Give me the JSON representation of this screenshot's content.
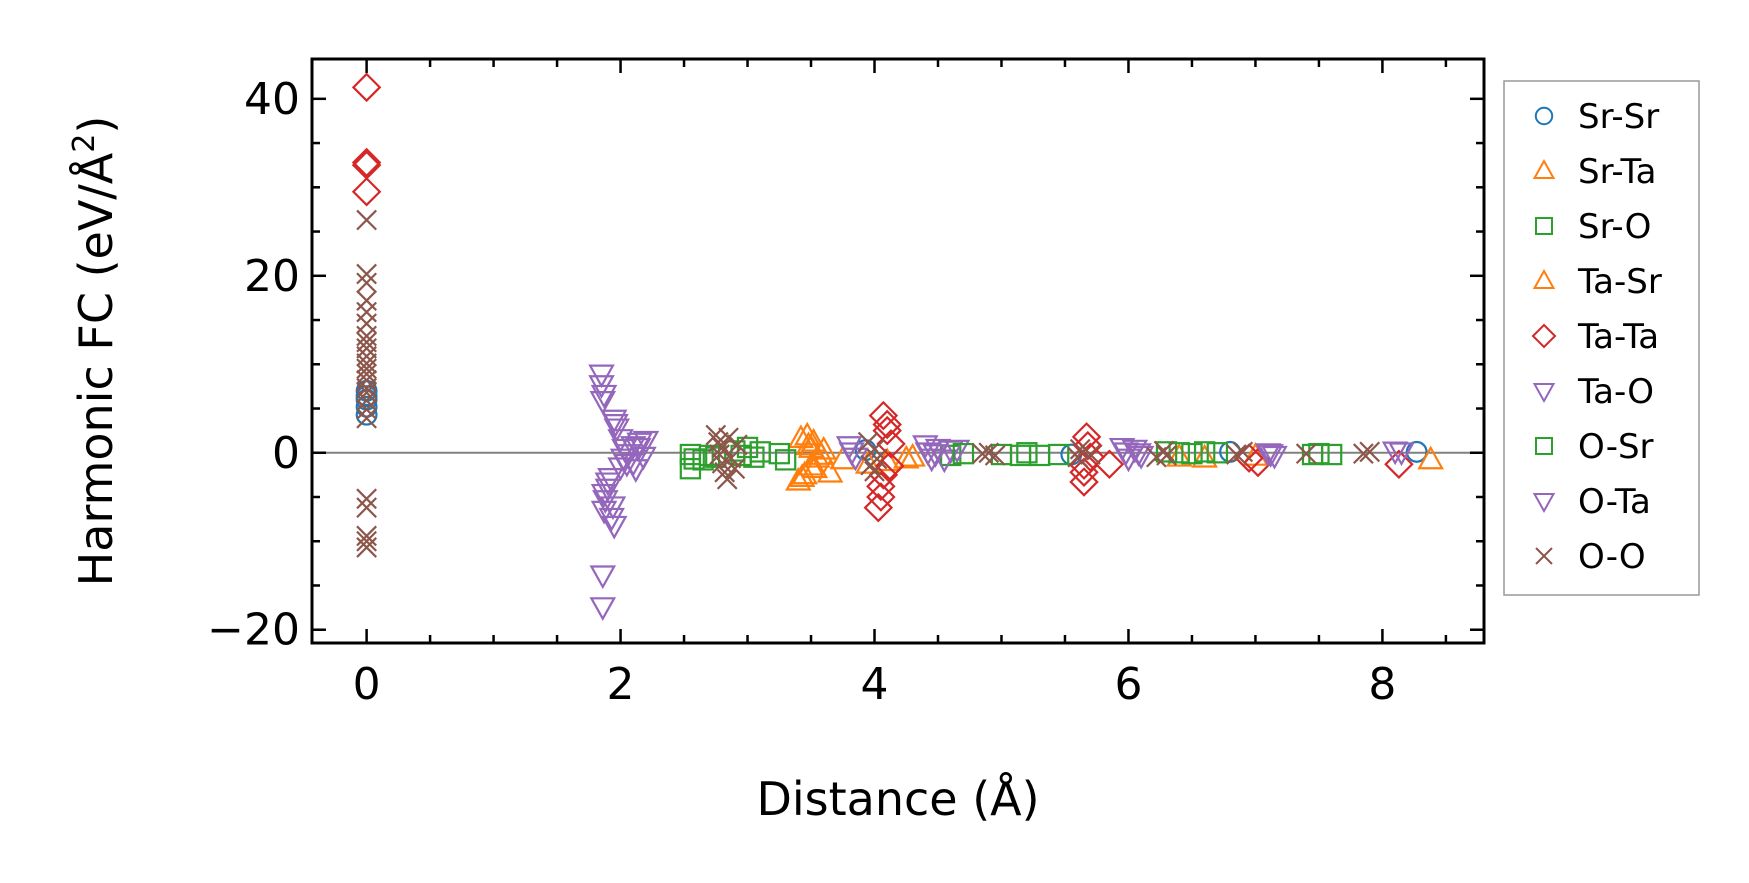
{
  "chart_data": {
    "type": "scatter",
    "title": "",
    "xlabel": "Distance (Å)",
    "ylabel_main": "Harmonic FC (eV/Å",
    "ylabel_sup": "2",
    "ylabel_close": ")",
    "xlim": [
      -0.43,
      8.8
    ],
    "ylim": [
      -21.5,
      44.5
    ],
    "xticks": [
      0,
      2,
      4,
      6,
      8
    ],
    "xtick_labels": [
      "0",
      "2",
      "4",
      "6",
      "8"
    ],
    "yticks": [
      -20,
      0,
      20,
      40
    ],
    "ytick_labels": [
      "−20",
      "0",
      "20",
      "40"
    ],
    "x_minor_step": 0.5,
    "y_minor_step": 5,
    "grid": false,
    "zero_line": true,
    "legend_position": "outside-right",
    "series": [
      {
        "name": "Sr-Sr",
        "marker": "circle",
        "color": "#1f77b4",
        "points": [
          [
            0,
            4.3
          ],
          [
            0,
            5.2
          ],
          [
            0,
            6.0
          ],
          [
            0,
            6.4
          ],
          [
            0,
            7.0
          ],
          [
            3.93,
            0.3
          ],
          [
            5.55,
            -0.2
          ],
          [
            6.8,
            0.1
          ],
          [
            8.27,
            0.1
          ]
        ]
      },
      {
        "name": "Sr-Ta",
        "marker": "triangle-up",
        "color": "#ff7f0e",
        "points": [
          [
            3.4,
            -3.2
          ],
          [
            3.42,
            1.6
          ],
          [
            3.45,
            -2.5
          ],
          [
            3.48,
            0.8
          ],
          [
            3.5,
            -1.5
          ],
          [
            3.52,
            1.2
          ],
          [
            3.55,
            -0.6
          ],
          [
            3.6,
            0.3
          ],
          [
            3.65,
            -2.3
          ],
          [
            3.75,
            -0.8
          ],
          [
            4.1,
            -1.0
          ],
          [
            4.3,
            -0.5
          ],
          [
            6.4,
            -0.5
          ],
          [
            6.6,
            -0.6
          ],
          [
            7.0,
            -0.4
          ],
          [
            8.38,
            -0.8
          ]
        ]
      },
      {
        "name": "Sr-O",
        "marker": "square",
        "color": "#2ca02c",
        "points": [
          [
            2.55,
            -1.8
          ],
          [
            2.55,
            -0.2
          ],
          [
            2.65,
            -0.8
          ],
          [
            2.75,
            -0.5
          ],
          [
            2.9,
            0.2
          ],
          [
            3.0,
            0.6
          ],
          [
            3.05,
            -0.5
          ],
          [
            3.3,
            -0.8
          ],
          [
            4.6,
            -0.3
          ],
          [
            5.0,
            -0.2
          ],
          [
            5.15,
            -0.3
          ],
          [
            5.3,
            -0.3
          ],
          [
            5.45,
            -0.2
          ],
          [
            6.3,
            0.1
          ],
          [
            6.5,
            -0.1
          ],
          [
            6.7,
            0.0
          ],
          [
            7.45,
            -0.2
          ],
          [
            7.6,
            -0.2
          ]
        ]
      },
      {
        "name": "Ta-Sr",
        "marker": "triangle-up",
        "color": "#ff7f0e",
        "points": [
          [
            3.43,
            -2.8
          ],
          [
            3.47,
            1.9
          ],
          [
            3.5,
            0.5
          ],
          [
            3.53,
            -1.8
          ],
          [
            3.58,
            -0.3
          ],
          [
            3.95,
            -1.3
          ],
          [
            4.25,
            -0.7
          ]
        ]
      },
      {
        "name": "Ta-Ta",
        "marker": "diamond",
        "color": "#d62728",
        "points": [
          [
            0,
            41.3
          ],
          [
            0,
            32.5
          ],
          [
            0,
            32.8
          ],
          [
            0,
            29.5
          ],
          [
            4.03,
            -6.2
          ],
          [
            4.05,
            -5.0
          ],
          [
            4.05,
            -3.8
          ],
          [
            4.07,
            -2.5
          ],
          [
            4.07,
            4.2
          ],
          [
            4.1,
            3.2
          ],
          [
            4.1,
            2.5
          ],
          [
            4.12,
            -1.5
          ],
          [
            4.13,
            1.0
          ],
          [
            5.65,
            -3.3
          ],
          [
            5.65,
            -2.2
          ],
          [
            5.65,
            -1.4
          ],
          [
            5.67,
            1.8
          ],
          [
            5.68,
            0.8
          ],
          [
            5.7,
            -0.5
          ],
          [
            5.85,
            -1.3
          ],
          [
            6.95,
            -0.6
          ],
          [
            7.02,
            -1.1
          ],
          [
            8.13,
            -1.3
          ]
        ]
      },
      {
        "name": "Ta-O",
        "marker": "triangle-down",
        "color": "#9467bd",
        "points": [
          [
            1.85,
            8.9
          ],
          [
            1.85,
            7.7
          ],
          [
            1.87,
            6.6
          ],
          [
            1.86,
            -13.8
          ],
          [
            1.86,
            -17.4
          ],
          [
            1.87,
            -6.5
          ],
          [
            1.88,
            -5.3
          ],
          [
            1.9,
            -4.0
          ],
          [
            1.92,
            -2.8
          ],
          [
            1.93,
            -7.3
          ],
          [
            1.95,
            -8.2
          ],
          [
            1.95,
            3.8
          ],
          [
            1.97,
            2.8
          ],
          [
            2.0,
            -1.6
          ],
          [
            2.02,
            -0.6
          ],
          [
            2.03,
            0.5
          ],
          [
            2.05,
            -1.2
          ],
          [
            2.1,
            0.8
          ],
          [
            2.12,
            -1.8
          ],
          [
            2.15,
            1.2
          ],
          [
            2.18,
            -0.4
          ],
          [
            2.2,
            1.4
          ],
          [
            3.8,
            0.8
          ],
          [
            3.85,
            -0.5
          ],
          [
            4.4,
            0.9
          ],
          [
            4.45,
            -0.6
          ],
          [
            4.5,
            0.5
          ],
          [
            4.55,
            -0.7
          ],
          [
            4.6,
            0.3
          ],
          [
            4.65,
            0.4
          ],
          [
            5.95,
            0.6
          ],
          [
            6.0,
            -0.6
          ],
          [
            6.05,
            0.4
          ],
          [
            6.1,
            -0.3
          ],
          [
            7.1,
            0.0
          ],
          [
            7.15,
            -0.3
          ],
          [
            8.1,
            0.2
          ],
          [
            8.15,
            0.1
          ]
        ]
      },
      {
        "name": "O-Sr",
        "marker": "square",
        "color": "#2ca02c",
        "points": [
          [
            2.58,
            -0.7
          ],
          [
            2.7,
            -0.3
          ],
          [
            2.95,
            -0.3
          ],
          [
            3.1,
            0.1
          ],
          [
            3.25,
            -0.1
          ],
          [
            4.7,
            -0.1
          ],
          [
            5.2,
            0.0
          ],
          [
            6.4,
            0.0
          ],
          [
            6.6,
            0.1
          ],
          [
            7.5,
            -0.1
          ]
        ]
      },
      {
        "name": "O-Ta",
        "marker": "triangle-down",
        "color": "#9467bd",
        "points": [
          [
            1.86,
            5.9
          ],
          [
            1.87,
            -4.6
          ],
          [
            1.9,
            -3.3
          ],
          [
            1.94,
            -6.0
          ],
          [
            1.96,
            3.3
          ],
          [
            2.0,
            1.6
          ],
          [
            2.06,
            -0.1
          ],
          [
            2.1,
            -1.1
          ],
          [
            2.14,
            0.6
          ],
          [
            3.82,
            0.1
          ],
          [
            4.42,
            0.1
          ],
          [
            4.48,
            -0.1
          ],
          [
            5.98,
            0.1
          ],
          [
            6.08,
            0.0
          ],
          [
            7.12,
            -0.1
          ]
        ]
      },
      {
        "name": "O-O",
        "marker": "x",
        "color": "#8c564b",
        "points": [
          [
            0,
            26.3
          ],
          [
            0,
            20.2
          ],
          [
            0,
            19.2
          ],
          [
            0,
            17.2
          ],
          [
            0,
            15.9
          ],
          [
            0,
            14.6
          ],
          [
            0,
            13.2
          ],
          [
            0,
            12.5
          ],
          [
            0,
            11.8
          ],
          [
            0,
            10.9
          ],
          [
            0,
            10.1
          ],
          [
            0,
            9.5
          ],
          [
            0,
            8.9
          ],
          [
            0,
            8.2
          ],
          [
            0,
            7.3
          ],
          [
            0,
            6.8
          ],
          [
            0,
            5.9
          ],
          [
            0,
            4.9
          ],
          [
            0,
            3.9
          ],
          [
            0,
            -5.2
          ],
          [
            0,
            -6.2
          ],
          [
            0,
            -9.4
          ],
          [
            0,
            -10.0
          ],
          [
            0,
            -10.7
          ],
          [
            2.75,
            2.0
          ],
          [
            2.77,
            1.2
          ],
          [
            2.78,
            -0.2
          ],
          [
            2.8,
            -1.2
          ],
          [
            2.8,
            0.6
          ],
          [
            2.82,
            -2.2
          ],
          [
            2.84,
            -3.0
          ],
          [
            2.85,
            1.7
          ],
          [
            2.87,
            -0.6
          ],
          [
            2.9,
            -1.8
          ],
          [
            2.92,
            0.9
          ],
          [
            3.95,
            1.2
          ],
          [
            3.97,
            -1.4
          ],
          [
            4.0,
            0.4
          ],
          [
            4.0,
            -2.1
          ],
          [
            4.02,
            -0.7
          ],
          [
            4.85,
            -0.1
          ],
          [
            4.9,
            0.0
          ],
          [
            4.95,
            -0.3
          ],
          [
            5.6,
            -0.5
          ],
          [
            5.62,
            0.4
          ],
          [
            5.7,
            -0.2
          ],
          [
            6.22,
            -0.5
          ],
          [
            6.28,
            0.2
          ],
          [
            6.3,
            -0.3
          ],
          [
            6.85,
            -0.2
          ],
          [
            6.9,
            0.1
          ],
          [
            7.4,
            -0.1
          ],
          [
            7.85,
            -0.1
          ],
          [
            7.9,
            0.1
          ]
        ]
      }
    ]
  }
}
